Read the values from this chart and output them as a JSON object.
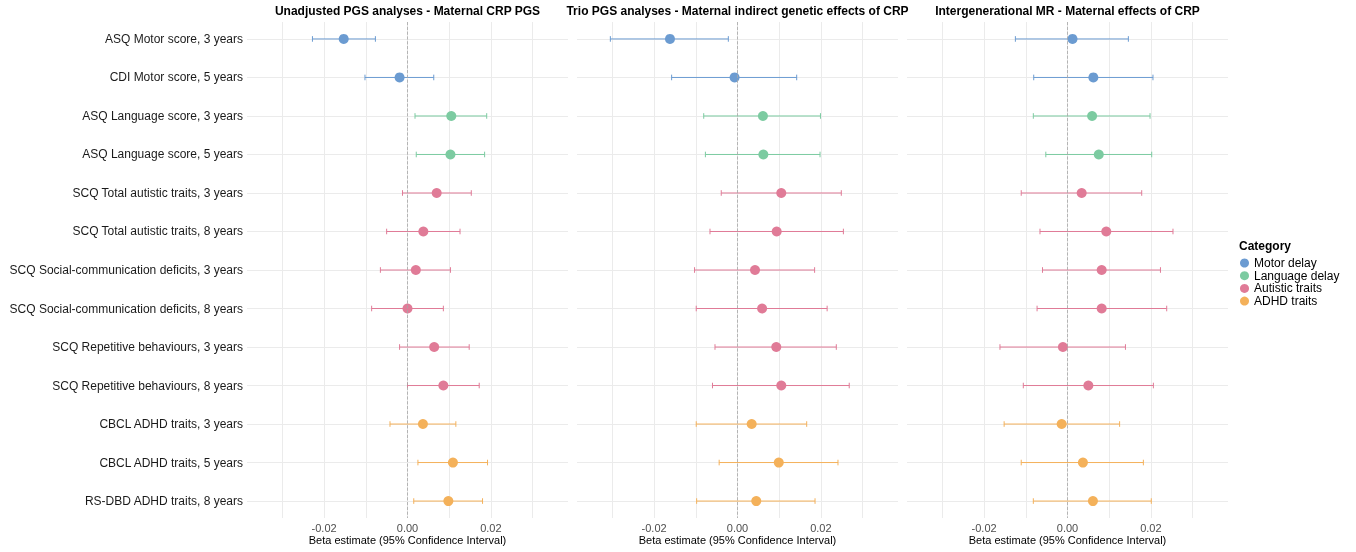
{
  "chart_data": [
    {
      "type": "scatter",
      "orientation": "horizontal",
      "title": "Unadjusted PGS analyses - Maternal CRP PGS",
      "xlabel": "Beta estimate (95% Confidence Interval)",
      "categories": [
        "ASQ Motor score, 3 years",
        "CDI Motor score, 5 years",
        "ASQ Language score, 3 years",
        "ASQ Language score, 5 years",
        "SCQ Total autistic traits, 3 years",
        "SCQ Total autistic traits, 8 years",
        "SCQ Social-communication deficits, 3 years",
        "SCQ Social-communication deficits, 8 years",
        "SCQ Repetitive behaviours, 3 years",
        "SCQ Repetitive behaviours, 8 years",
        "CBCL ADHD traits, 3 years",
        "CBCL ADHD traits, 5 years",
        "RS-DBD ADHD traits, 8 years"
      ],
      "series": [
        {
          "color": "#6b9bd1",
          "values": [
            -0.0153,
            -0.0019,
            null,
            null,
            null,
            null,
            null,
            null,
            null,
            null,
            null,
            null,
            null
          ],
          "errors": [
            [
              -0.0228,
              -0.0077
            ],
            [
              -0.0102,
              0.0063
            ],
            null,
            null,
            null,
            null,
            null,
            null,
            null,
            null,
            null,
            null,
            null
          ]
        },
        {
          "color": "#7ccba1",
          "values": [
            null,
            null,
            0.0105,
            0.0103,
            null,
            null,
            null,
            null,
            null,
            null,
            null,
            null,
            null
          ],
          "errors": [
            null,
            null,
            [
              0.0018,
              0.019
            ],
            [
              0.0021,
              0.0185
            ],
            null,
            null,
            null,
            null,
            null,
            null,
            null,
            null,
            null
          ]
        },
        {
          "color": "#e07b97",
          "values": [
            null,
            null,
            null,
            null,
            0.007,
            0.0038,
            0.002,
            0.0,
            0.0064,
            0.0086,
            null,
            null,
            null
          ],
          "errors": [
            null,
            null,
            null,
            null,
            [
              -0.0012,
              0.0153
            ],
            [
              -0.005,
              0.0126
            ],
            [
              -0.0065,
              0.0103
            ],
            [
              -0.0086,
              0.0086
            ],
            [
              -0.0019,
              0.0148
            ],
            [
              0.0,
              0.0172
            ],
            null,
            null,
            null
          ]
        },
        {
          "color": "#f4b15a",
          "values": [
            null,
            null,
            null,
            null,
            null,
            null,
            null,
            null,
            null,
            null,
            0.0037,
            0.0109,
            0.0098
          ],
          "errors": [
            null,
            null,
            null,
            null,
            null,
            null,
            null,
            null,
            null,
            null,
            [
              -0.0042,
              0.0116
            ],
            [
              0.0025,
              0.0192
            ],
            [
              0.0015,
              0.018
            ]
          ]
        }
      ],
      "xlim": [
        -0.0385,
        0.0385
      ],
      "xticks": [
        {
          "value": -0.03,
          "label": null
        },
        {
          "value": -0.02,
          "label": "-0.02"
        },
        {
          "value": -0.01,
          "label": null
        },
        {
          "value": 0,
          "label": "0.00"
        },
        {
          "value": 0.01,
          "label": null
        },
        {
          "value": 0.02,
          "label": "0.02"
        },
        {
          "value": 0.03,
          "label": null
        }
      ],
      "ref_lines": [
        {
          "axis": "x",
          "value": 0,
          "color": "#a6a6a6",
          "line_style": "dashed"
        }
      ],
      "grid": true,
      "marker": "circle"
    },
    {
      "type": "scatter",
      "orientation": "horizontal",
      "title": "Trio PGS analyses - Maternal indirect genetic effects of CRP",
      "xlabel": "Beta estimate (95% Confidence Interval)",
      "categories": [
        null,
        null,
        null,
        null,
        null,
        null,
        null,
        null,
        null,
        null,
        null,
        null,
        null
      ],
      "series": [
        {
          "color": "#6b9bd1",
          "values": [
            -0.0162,
            -0.0007,
            null,
            null,
            null,
            null,
            null,
            null,
            null,
            null,
            null,
            null,
            null
          ],
          "errors": [
            [
              -0.0305,
              -0.0022
            ],
            [
              -0.0158,
              0.0142
            ],
            null,
            null,
            null,
            null,
            null,
            null,
            null,
            null,
            null,
            null,
            null
          ]
        },
        {
          "color": "#7ccba1",
          "values": [
            null,
            null,
            0.0061,
            0.0062,
            null,
            null,
            null,
            null,
            null,
            null,
            null,
            null,
            null
          ],
          "errors": [
            null,
            null,
            [
              -0.0081,
              0.0199
            ],
            [
              -0.0077,
              0.0198
            ],
            null,
            null,
            null,
            null,
            null,
            null,
            null,
            null,
            null
          ]
        },
        {
          "color": "#e07b97",
          "values": [
            null,
            null,
            null,
            null,
            0.0105,
            0.0094,
            0.0042,
            0.0059,
            0.0093,
            0.0105,
            null,
            null,
            null
          ],
          "errors": [
            null,
            null,
            null,
            null,
            [
              -0.0039,
              0.0249
            ],
            [
              -0.0066,
              0.0254
            ],
            [
              -0.0103,
              0.0185
            ],
            [
              -0.0099,
              0.0215
            ],
            [
              -0.0054,
              0.0237
            ],
            [
              -0.006,
              0.0268
            ],
            null,
            null,
            null
          ]
        },
        {
          "color": "#f4b15a",
          "values": [
            null,
            null,
            null,
            null,
            null,
            null,
            null,
            null,
            null,
            null,
            0.0034,
            0.0099,
            0.0045
          ],
          "errors": [
            null,
            null,
            null,
            null,
            null,
            null,
            null,
            null,
            null,
            null,
            [
              -0.0099,
              0.0166
            ],
            [
              -0.0044,
              0.0241
            ],
            [
              -0.0098,
              0.0186
            ]
          ]
        }
      ],
      "xlim": [
        -0.0385,
        0.0385
      ],
      "xticks": [
        {
          "value": -0.03,
          "label": null
        },
        {
          "value": -0.02,
          "label": "-0.02"
        },
        {
          "value": -0.01,
          "label": null
        },
        {
          "value": 0,
          "label": "0.00"
        },
        {
          "value": 0.01,
          "label": null
        },
        {
          "value": 0.02,
          "label": "0.02"
        },
        {
          "value": 0.03,
          "label": null
        }
      ],
      "ref_lines": [
        {
          "axis": "x",
          "value": 0,
          "color": "#a6a6a6",
          "line_style": "dashed"
        }
      ],
      "grid": true,
      "marker": "circle",
      "tick_labels": "x"
    },
    {
      "type": "scatter",
      "orientation": "horizontal",
      "title": "Intergenerational MR - Maternal effects of CRP",
      "xlabel": "Beta estimate (95% Confidence Interval)",
      "categories": [
        null,
        null,
        null,
        null,
        null,
        null,
        null,
        null,
        null,
        null,
        null,
        null,
        null
      ],
      "series": [
        {
          "name": "Motor delay",
          "color": "#6b9bd1",
          "values": [
            0.0012,
            0.0062,
            null,
            null,
            null,
            null,
            null,
            null,
            null,
            null,
            null,
            null,
            null
          ],
          "errors": [
            [
              -0.0125,
              0.0146
            ],
            [
              -0.0081,
              0.0205
            ],
            null,
            null,
            null,
            null,
            null,
            null,
            null,
            null,
            null,
            null,
            null
          ]
        },
        {
          "name": "Language delay",
          "color": "#7ccba1",
          "values": [
            null,
            null,
            0.0059,
            0.0075,
            null,
            null,
            null,
            null,
            null,
            null,
            null,
            null,
            null
          ],
          "errors": [
            null,
            null,
            [
              -0.0082,
              0.0198
            ],
            [
              -0.0052,
              0.0202
            ],
            null,
            null,
            null,
            null,
            null,
            null,
            null,
            null,
            null
          ]
        },
        {
          "name": "Autistic traits",
          "color": "#e07b97",
          "values": [
            null,
            null,
            null,
            null,
            0.0034,
            0.0093,
            0.0082,
            0.0082,
            -0.0011,
            0.005,
            null,
            null,
            null
          ],
          "errors": [
            null,
            null,
            null,
            null,
            [
              -0.0111,
              0.0178
            ],
            [
              -0.0066,
              0.0253
            ],
            [
              -0.006,
              0.0223
            ],
            [
              -0.0073,
              0.0238
            ],
            [
              -0.0162,
              0.0139
            ],
            [
              -0.0106,
              0.0206
            ],
            null,
            null,
            null
          ]
        },
        {
          "name": "ADHD traits",
          "color": "#f4b15a",
          "values": [
            null,
            null,
            null,
            null,
            null,
            null,
            null,
            null,
            null,
            null,
            -0.0014,
            0.0037,
            0.0061
          ],
          "errors": [
            null,
            null,
            null,
            null,
            null,
            null,
            null,
            null,
            null,
            null,
            [
              -0.0152,
              0.0125
            ],
            [
              -0.0111,
              0.0182
            ],
            [
              -0.0082,
              0.0201
            ]
          ]
        }
      ],
      "xlim": [
        -0.0385,
        0.0385
      ],
      "xticks": [
        {
          "value": -0.03,
          "label": null
        },
        {
          "value": -0.02,
          "label": "-0.02"
        },
        {
          "value": -0.01,
          "label": null
        },
        {
          "value": 0,
          "label": "0.00"
        },
        {
          "value": 0.01,
          "label": null
        },
        {
          "value": 0.02,
          "label": "0.02"
        },
        {
          "value": 0.03,
          "label": null
        }
      ],
      "ref_lines": [
        {
          "axis": "x",
          "value": 0,
          "color": "#a6a6a6",
          "line_style": "dashed"
        }
      ],
      "grid": true,
      "marker": "circle",
      "tick_labels": "x",
      "legend": "right",
      "legend_title": "Category"
    }
  ]
}
